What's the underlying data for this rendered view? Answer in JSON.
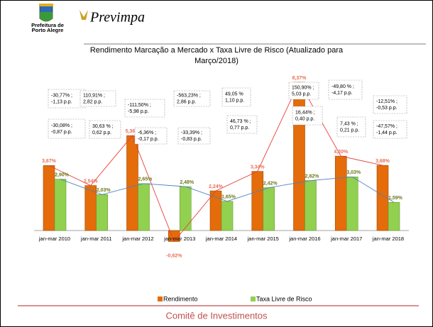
{
  "header": {
    "org_lines": [
      "Prefeitura de",
      "Porto Alegre"
    ],
    "brand": "Previmpa"
  },
  "footer": "Comitê de Investimentos",
  "chart_data": {
    "type": "bar",
    "title_lines": [
      "Rendimento Marcação a Mercado x Taxa Livre de Risco (Atualizado para",
      "Março/2018)"
    ],
    "categories": [
      "jan-mar 2010",
      "jan-mar 2011",
      "jan-mar 2012",
      "jan-mar 2013",
      "jan-mar 2014",
      "jan-mar 2015",
      "jan-mar 2016",
      "jan-mar 2017",
      "jan-mar 2018"
    ],
    "series": [
      {
        "name": "Rendimento",
        "color": "#e46c0a",
        "line_color": "#e8403a",
        "values": [
          3.67,
          2.54,
          5.36,
          -0.62,
          2.24,
          3.34,
          8.37,
          4.2,
          3.68
        ],
        "value_labels": [
          "3,67%",
          "2,54%",
          "5,36%",
          "-0,62%",
          "2,24%",
          "3,34%",
          "8,37%",
          "4,20%",
          "3,68%"
        ]
      },
      {
        "name": "Taxa Livre de Risco",
        "color": "#92d050",
        "line_color": "#4f81bd",
        "values": [
          2.9,
          2.03,
          2.65,
          2.48,
          1.65,
          2.42,
          2.82,
          3.03,
          1.59
        ],
        "value_labels": [
          "2,90%",
          "2,03%",
          "2,65%",
          "2,48%",
          "1,65%",
          "2,42%",
          "2,82%",
          "3,03%",
          "1,59%"
        ]
      }
    ],
    "annotations": [
      {
        "lines": [
          "-30,77% ;",
          "-1,13 p.p."
        ]
      },
      {
        "lines": [
          "-30,08% ;",
          "-0,87 p.p."
        ]
      },
      {
        "lines": [
          "110,91% ;",
          "2,82 p.p."
        ]
      },
      {
        "lines": [
          "30,63 % ;",
          "0,62 p.p."
        ]
      },
      {
        "lines": [
          "-111,50% ;",
          "-5,98 p.p."
        ]
      },
      {
        "lines": [
          "-6,36% ;",
          "-0,17 p.p."
        ]
      },
      {
        "lines": [
          "-563,23% ;",
          "2,86 p.p."
        ]
      },
      {
        "lines": [
          "-33,39% ;",
          "-0,83 p.p."
        ]
      },
      {
        "lines": [
          "49,05 %",
          "1,10 p.p."
        ]
      },
      {
        "lines": [
          "46,73 % ;",
          "0,77 p.p."
        ]
      },
      {
        "lines": [
          "150,90% ;",
          "5,03 p.p."
        ]
      },
      {
        "lines": [
          "16,44% ;",
          "0,40 p.p."
        ]
      },
      {
        "lines": [
          "-49,80 % ;",
          "-4,17 p.p."
        ]
      },
      {
        "lines": [
          "7,43 % ;",
          "0,21 p.p."
        ]
      },
      {
        "lines": [
          "-12,51% ;",
          "-0,53 p.p."
        ]
      },
      {
        "lines": [
          "-47,57% ;",
          "-1,44 p.p."
        ]
      }
    ],
    "legend": "bottom"
  }
}
